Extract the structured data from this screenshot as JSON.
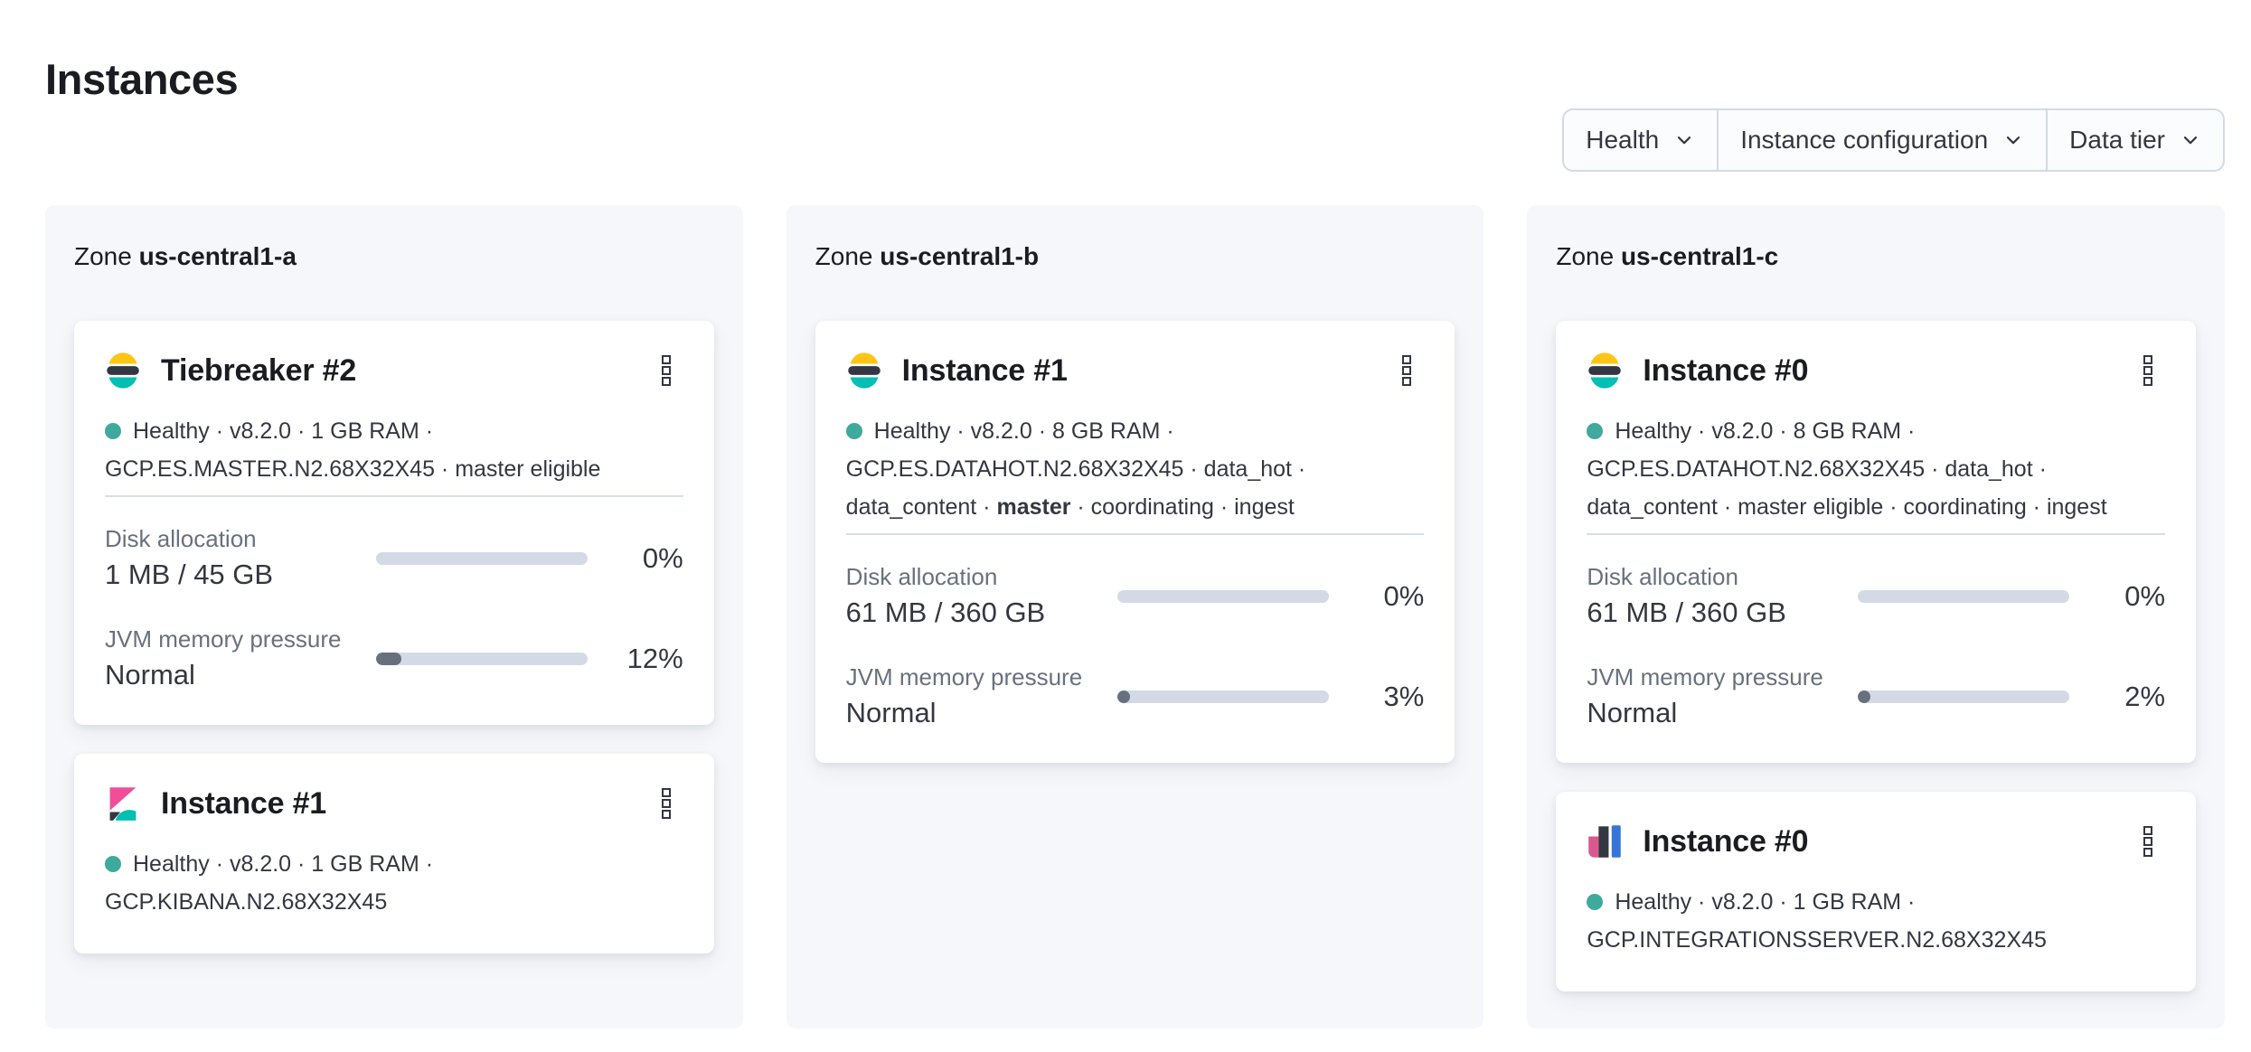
{
  "page": {
    "title": "Instances"
  },
  "colors": {
    "title_text": "#1a1c21",
    "body_text": "#343741",
    "subdued_text": "#69707d",
    "panel": "#f5f7fa",
    "filter_bg": "#fbfcfd",
    "border": "#d3dae6",
    "divider": "#d9dfe9",
    "track": "#d3dae6",
    "fill": "#69707d",
    "health": "#3fa99c",
    "es_yellow": "#fec514",
    "es_teal": "#00bfb3",
    "dark": "#343741",
    "kibana_pink": "#f04e98",
    "int_pink": "#d9598f",
    "int_blue": "#3577d8"
  },
  "icons": {
    "menu": "boxes-vertical-icon",
    "dropdown": "chevron-down-icon",
    "health": "health-dot"
  },
  "filters": [
    {
      "label": "Health"
    },
    {
      "label": "Instance configuration"
    },
    {
      "label": "Data tier"
    }
  ],
  "zones": [
    {
      "prefix": "Zone",
      "name": "us-central1-a",
      "instances": [
        {
          "logo": "elasticsearch",
          "title": "Tiebreaker #2",
          "meta_lines": [
            {
              "dot": true,
              "segments": [
                {
                  "text": "Healthy · v8.2.0 · 1 GB RAM ·"
                }
              ]
            },
            {
              "segments": [
                {
                  "text": "GCP.ES.MASTER.N2.68X32X45 · master eligible"
                }
              ]
            }
          ],
          "stats": [
            {
              "label": "Disk allocation",
              "value": "1 MB / 45 GB",
              "percent_label": "0%",
              "percent": 0
            },
            {
              "label": "JVM memory pressure",
              "value": "Normal",
              "percent_label": "12%",
              "percent": 12
            }
          ]
        },
        {
          "logo": "kibana",
          "title": "Instance #1",
          "meta_lines": [
            {
              "dot": true,
              "segments": [
                {
                  "text": "Healthy · v8.2.0 · 1 GB RAM ·"
                }
              ]
            },
            {
              "segments": [
                {
                  "text": "GCP.KIBANA.N2.68X32X45"
                }
              ]
            }
          ],
          "stats": []
        }
      ]
    },
    {
      "prefix": "Zone",
      "name": "us-central1-b",
      "instances": [
        {
          "logo": "elasticsearch",
          "title": "Instance #1",
          "meta_lines": [
            {
              "dot": true,
              "segments": [
                {
                  "text": "Healthy · v8.2.0 · 8 GB RAM ·"
                }
              ]
            },
            {
              "segments": [
                {
                  "text": "GCP.ES.DATAHOT.N2.68X32X45 · data_hot ·"
                }
              ]
            },
            {
              "segments": [
                {
                  "text": "data_content · "
                },
                {
                  "text": "master",
                  "bold": true
                },
                {
                  "text": " · coordinating · ingest"
                }
              ]
            }
          ],
          "stats": [
            {
              "label": "Disk allocation",
              "value": "61 MB / 360 GB",
              "percent_label": "0%",
              "percent": 0
            },
            {
              "label": "JVM memory pressure",
              "value": "Normal",
              "percent_label": "3%",
              "percent": 3
            }
          ]
        }
      ]
    },
    {
      "prefix": "Zone",
      "name": "us-central1-c",
      "instances": [
        {
          "logo": "elasticsearch",
          "title": "Instance #0",
          "meta_lines": [
            {
              "dot": true,
              "segments": [
                {
                  "text": "Healthy · v8.2.0 · 8 GB RAM ·"
                }
              ]
            },
            {
              "segments": [
                {
                  "text": "GCP.ES.DATAHOT.N2.68X32X45 · data_hot ·"
                }
              ]
            },
            {
              "segments": [
                {
                  "text": "data_content · master eligible · coordinating · ingest"
                }
              ]
            }
          ],
          "stats": [
            {
              "label": "Disk allocation",
              "value": "61 MB / 360 GB",
              "percent_label": "0%",
              "percent": 0
            },
            {
              "label": "JVM memory pressure",
              "value": "Normal",
              "percent_label": "2%",
              "percent": 2
            }
          ]
        },
        {
          "logo": "integrations-server",
          "title": "Instance #0",
          "meta_lines": [
            {
              "dot": true,
              "segments": [
                {
                  "text": "Healthy · v8.2.0 · 1 GB RAM ·"
                }
              ]
            },
            {
              "segments": [
                {
                  "text": "GCP.INTEGRATIONSSERVER.N2.68X32X45"
                }
              ]
            }
          ],
          "stats": []
        }
      ]
    }
  ]
}
